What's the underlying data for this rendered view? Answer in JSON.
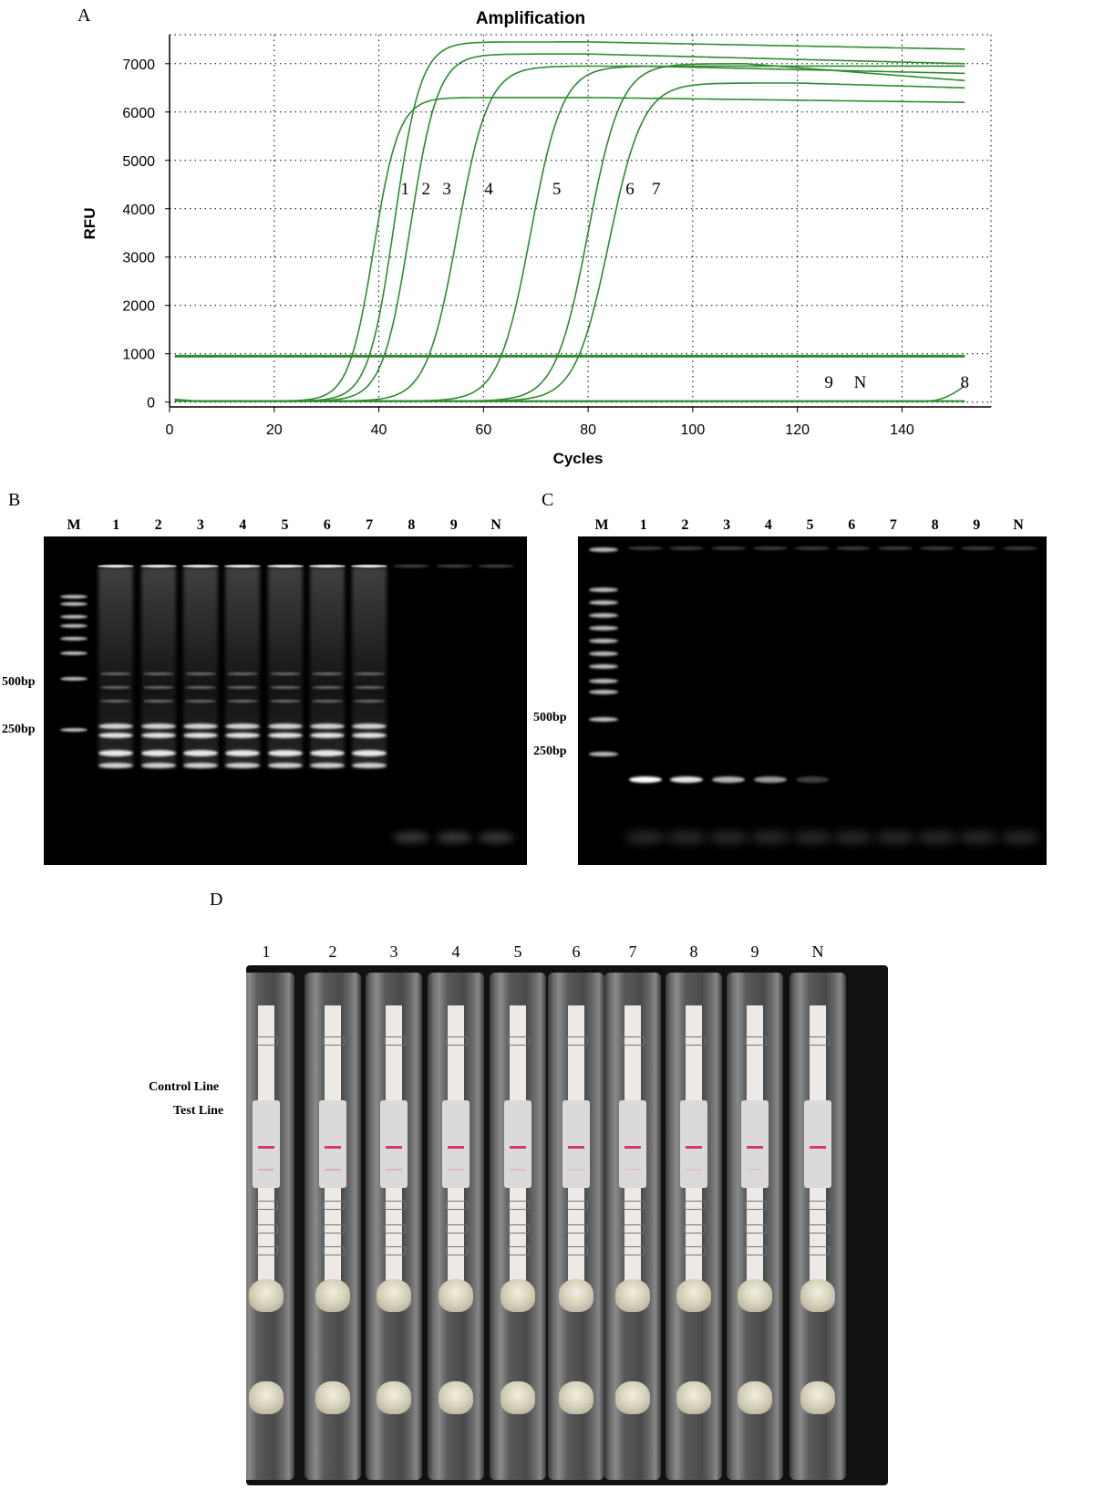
{
  "panels": {
    "a": "A",
    "b": "B",
    "c": "C",
    "d": "D"
  },
  "chart_data": {
    "type": "line",
    "title": "Amplification",
    "xlabel": "Cycles",
    "ylabel": "RFU",
    "xlim": [
      0,
      157
    ],
    "ylim": [
      -100,
      7600
    ],
    "xticks": [
      0,
      20,
      40,
      60,
      80,
      100,
      120,
      140
    ],
    "yticks": [
      0,
      1000,
      2000,
      3000,
      4000,
      5000,
      6000,
      7000
    ],
    "grid": "dotted",
    "threshold": 950,
    "color": "#2e8b2e",
    "series": [
      {
        "label": "1",
        "label_x": 45,
        "label_y": 4300,
        "mid": 39,
        "k": 0.42,
        "plateau": 6300,
        "end": 6200,
        "peak_x": 80
      },
      {
        "label": "2",
        "label_x": 49,
        "label_y": 4300,
        "mid": 43,
        "k": 0.4,
        "plateau": 7450,
        "end": 7300,
        "peak_x": 80
      },
      {
        "label": "3",
        "label_x": 53,
        "label_y": 4300,
        "mid": 46,
        "k": 0.38,
        "plateau": 7200,
        "end": 7000,
        "peak_x": 80
      },
      {
        "label": "4",
        "label_x": 61,
        "label_y": 4300,
        "mid": 55,
        "k": 0.34,
        "plateau": 6950,
        "end": 6800,
        "peak_x": 90
      },
      {
        "label": "5",
        "label_x": 74,
        "label_y": 4300,
        "mid": 69,
        "k": 0.33,
        "plateau": 6950,
        "end": 6950,
        "peak_x": 100
      },
      {
        "label": "6",
        "label_x": 88,
        "label_y": 4300,
        "mid": 80,
        "k": 0.32,
        "plateau": 7000,
        "end": 6650,
        "peak_x": 110
      },
      {
        "label": "7",
        "label_x": 93,
        "label_y": 4300,
        "mid": 84,
        "k": 0.31,
        "plateau": 6600,
        "end": 6500,
        "peak_x": 120
      }
    ],
    "flat_labels": [
      {
        "label": "9",
        "x": 126,
        "y": 300
      },
      {
        "label": "N",
        "x": 132,
        "y": 300
      },
      {
        "label": "8",
        "x": 152,
        "y": 300
      }
    ]
  },
  "gel_b": {
    "lanes": [
      "M",
      "1",
      "2",
      "3",
      "4",
      "5",
      "6",
      "7",
      "8",
      "9",
      "N"
    ],
    "markers": [
      "500bp",
      "250bp"
    ]
  },
  "gel_c": {
    "lanes": [
      "M",
      "1",
      "2",
      "3",
      "4",
      "5",
      "6",
      "7",
      "8",
      "9",
      "N"
    ],
    "markers": [
      "500bp",
      "250bp"
    ],
    "band_intensity": [
      1.0,
      0.9,
      0.7,
      0.6,
      0.25,
      0,
      0,
      0,
      0,
      0
    ]
  },
  "strips": {
    "labels": [
      "1",
      "2",
      "3",
      "4",
      "5",
      "6",
      "7",
      "8",
      "9",
      "N"
    ],
    "control_label": "Control Line",
    "test_label": "Test Line",
    "test_intensity": [
      0.55,
      0.55,
      0.45,
      0.4,
      0.35,
      0.25,
      0.2,
      0.25,
      0.2,
      0
    ]
  }
}
